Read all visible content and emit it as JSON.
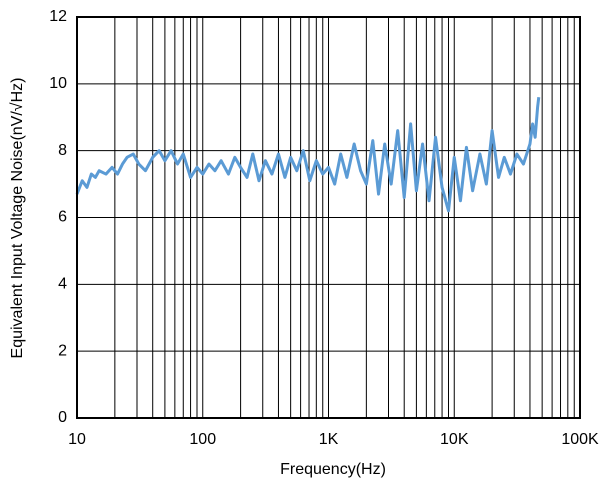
{
  "chart_data": {
    "type": "line",
    "x_label": "Frequency(Hz)",
    "y_label": "Equivalent Input Voltage Noise(nV/√Hz)",
    "x_log": true,
    "grid": true,
    "xlim": [
      10,
      100000
    ],
    "ylim": [
      0,
      12
    ],
    "xticks": [
      10,
      100,
      {
        "value": 1000,
        "label": "1K"
      },
      {
        "value": 10000,
        "label": "10K"
      },
      {
        "value": 100000,
        "label": "100K"
      }
    ],
    "yticks": [
      0,
      2,
      4,
      6,
      8,
      10,
      12
    ],
    "x": [
      10,
      11,
      12,
      13,
      14,
      15,
      17,
      19,
      21,
      23,
      25,
      28,
      31,
      35,
      40,
      45,
      50,
      56,
      63,
      70,
      80,
      90,
      100,
      112,
      125,
      140,
      160,
      180,
      200,
      225,
      250,
      280,
      315,
      355,
      400,
      450,
      500,
      560,
      630,
      710,
      800,
      900,
      1000,
      1120,
      1250,
      1400,
      1600,
      1800,
      2000,
      2250,
      2500,
      2800,
      3150,
      3550,
      4000,
      4500,
      5000,
      5600,
      6300,
      7100,
      8000,
      9000,
      10000,
      11200,
      12500,
      14000,
      16000,
      18000,
      20000,
      22500,
      25000,
      28000,
      31500,
      35500,
      40000,
      42000,
      44000,
      46000,
      47000
    ],
    "series": [
      {
        "color": "#5b9bd5",
        "values": [
          6.7,
          7.1,
          6.9,
          7.3,
          7.2,
          7.4,
          7.3,
          7.5,
          7.3,
          7.6,
          7.8,
          7.9,
          7.6,
          7.4,
          7.8,
          8.0,
          7.7,
          8.0,
          7.6,
          7.9,
          7.2,
          7.5,
          7.3,
          7.6,
          7.4,
          7.7,
          7.3,
          7.8,
          7.5,
          7.2,
          7.9,
          7.1,
          7.7,
          7.3,
          7.9,
          7.2,
          7.8,
          7.4,
          8.0,
          7.1,
          7.7,
          7.3,
          7.5,
          7.0,
          7.9,
          7.2,
          8.2,
          7.4,
          7.0,
          8.3,
          6.7,
          8.2,
          7.0,
          8.6,
          6.6,
          8.8,
          6.8,
          8.2,
          6.5,
          8.4,
          6.9,
          6.2,
          7.8,
          6.5,
          8.1,
          6.8,
          7.9,
          7.0,
          8.6,
          7.2,
          7.8,
          7.3,
          7.9,
          7.6,
          8.2,
          8.8,
          8.4,
          9.3,
          9.6
        ]
      }
    ]
  }
}
